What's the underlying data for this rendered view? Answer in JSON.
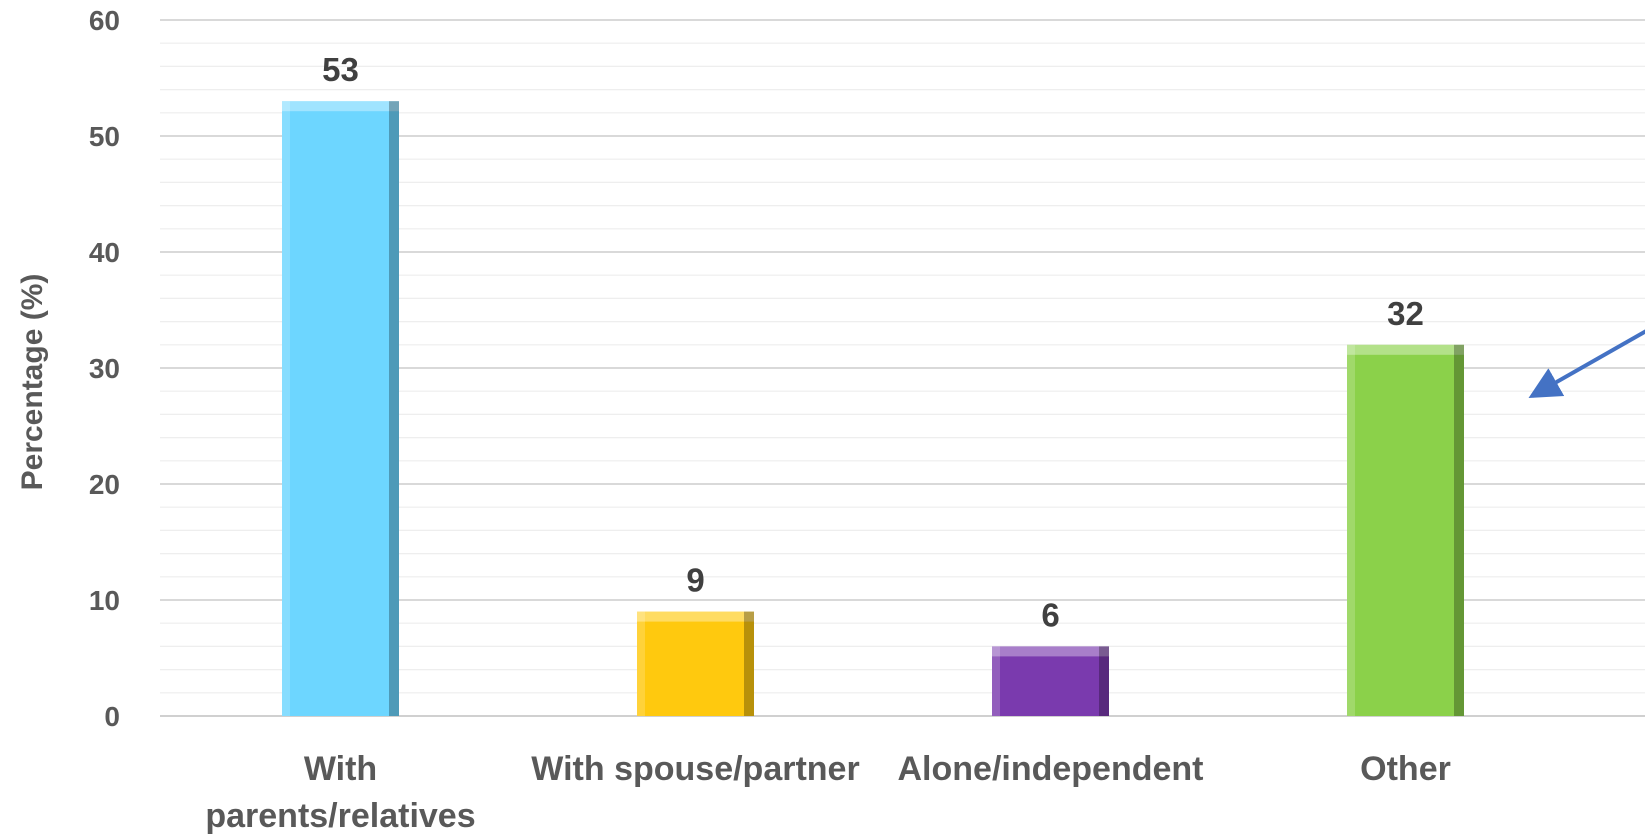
{
  "chart_data": {
    "type": "bar",
    "categories": [
      "With parents/relatives",
      "With spouse/partner",
      "Alone/independent",
      "Other"
    ],
    "category_lines": [
      [
        "With",
        "parents/relatives"
      ],
      [
        "With spouse/partner"
      ],
      [
        "Alone/independent"
      ],
      [
        "Other"
      ]
    ],
    "values": [
      53,
      9,
      6,
      32
    ],
    "data_labels": [
      "53",
      "9",
      "6",
      "32"
    ],
    "colors": [
      "#6DD6FF",
      "#FFC90E",
      "#7A3AAE",
      "#8BD14A"
    ],
    "ylabel": "Percentage (%)",
    "xlabel": "",
    "title": "",
    "ylim": [
      0,
      60
    ],
    "yticks": [
      0,
      10,
      20,
      30,
      40,
      50,
      60
    ],
    "grid": true,
    "legend": "none",
    "annotation_arrow_color": "#4472C4"
  }
}
